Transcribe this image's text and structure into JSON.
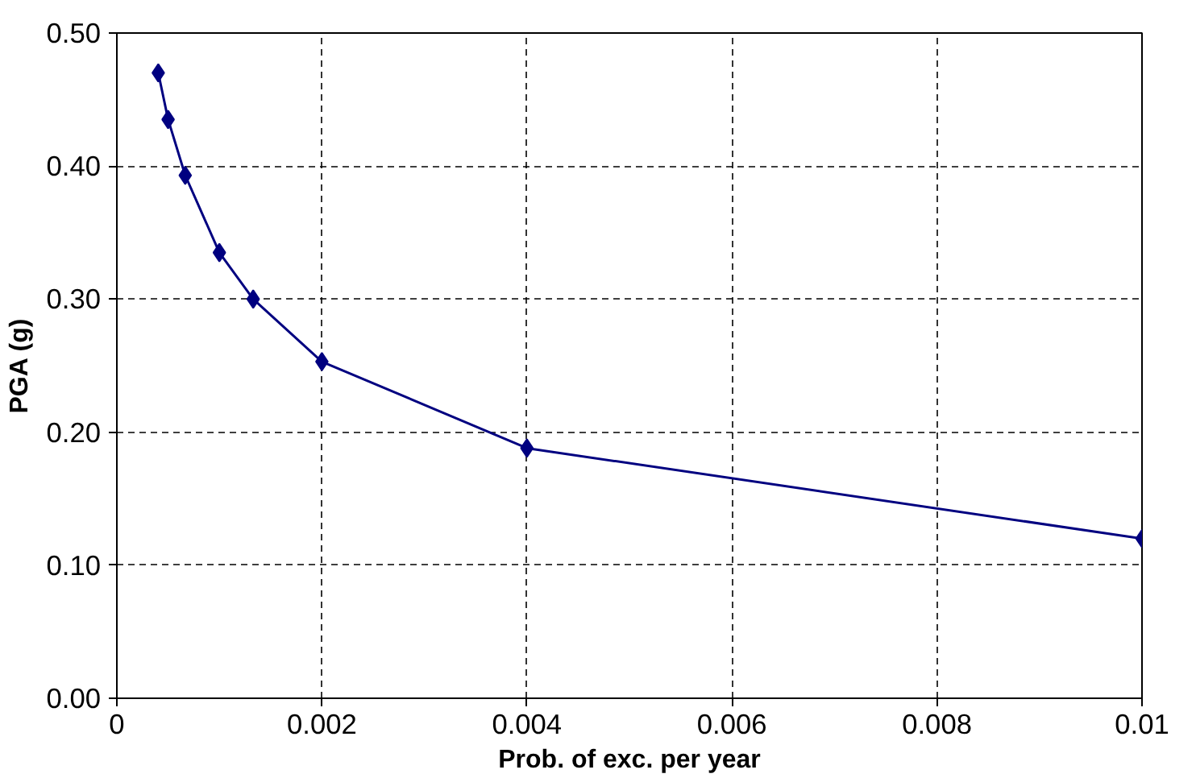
{
  "chart_data": {
    "type": "line",
    "xlabel": "Prob. of exc. per year",
    "ylabel": "PGA (g)",
    "x": [
      0.000404,
      0.0005,
      0.000667,
      0.001,
      0.00133,
      0.002,
      0.004,
      0.01
    ],
    "series": [
      {
        "color": "#000080",
        "values": [
          0.47,
          0.435,
          0.393,
          0.335,
          0.3,
          0.253,
          0.188,
          0.12
        ]
      }
    ],
    "xlim": [
      0,
      0.01
    ],
    "ylim": [
      0,
      0.5
    ],
    "xticks": [
      0,
      0.002,
      0.004,
      0.006,
      0.008,
      0.01
    ],
    "yticks": [
      {
        "value": 0,
        "label": "0.00"
      },
      {
        "value": 0.1,
        "label": "0.10"
      },
      {
        "value": 0.2,
        "label": "0.20"
      },
      {
        "value": 0.3,
        "label": "0.30"
      },
      {
        "value": 0.4,
        "label": "0.40"
      },
      {
        "value": 0.5,
        "label": "0.50"
      }
    ],
    "grid": true,
    "marker": "diamond",
    "line_style": "solid"
  }
}
